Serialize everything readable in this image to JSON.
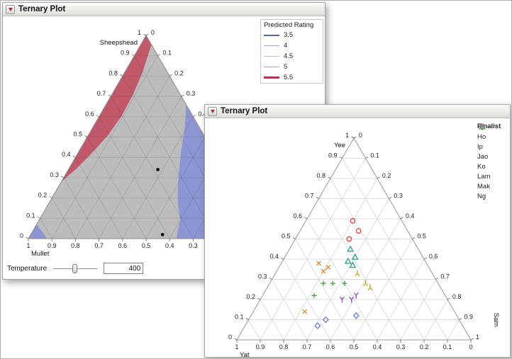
{
  "windows": {
    "left": {
      "title": "Ternary Plot"
    },
    "right": {
      "title": "Ternary Plot"
    }
  },
  "chart_data": [
    {
      "type": "ternary-contour",
      "window": "left",
      "axes": {
        "top": "Sheepshead",
        "bottom_left": "Mullet",
        "tick_step": 0.1,
        "range": [
          0,
          1
        ]
      },
      "legend": {
        "title": "Predicted Rating",
        "levels": [
          {
            "label": "3.5",
            "color": "#5468b2",
            "weight": 2
          },
          {
            "label": "4",
            "color": "#9aa6d2",
            "weight": 1.5
          },
          {
            "label": "4.5",
            "color": "#bbbbbb",
            "weight": 1
          },
          {
            "label": "5",
            "color": "#d49aa7",
            "weight": 1.5
          },
          {
            "label": "5.5",
            "color": "#b43848",
            "weight": 3
          }
        ]
      },
      "fill": {
        "base": "#bcbcbc",
        "high": "#c2596b",
        "low": "#8d96d2"
      },
      "high_band": {
        "edge": "left",
        "f0": 0.28,
        "widths": [
          [
            0.28,
            0
          ],
          [
            0.36,
            9
          ],
          [
            0.45,
            17
          ],
          [
            0.55,
            24
          ],
          [
            0.65,
            27
          ],
          [
            0.75,
            26
          ],
          [
            0.85,
            22
          ],
          [
            0.95,
            15
          ],
          [
            1,
            12
          ]
        ]
      },
      "low_polygons": [
        [
          [
            1,
            0,
            0
          ],
          [
            0.92,
            0,
            0.08
          ],
          [
            0.93,
            0.07,
            0
          ]
        ],
        [
          [
            0,
            0.66,
            0.34
          ],
          [
            0.06,
            0.55,
            0.39
          ],
          [
            0.13,
            0.44,
            0.43
          ],
          [
            0.19,
            0.34,
            0.47
          ],
          [
            0.24,
            0.25,
            0.51
          ],
          [
            0.28,
            0.17,
            0.55
          ],
          [
            0.31,
            0.09,
            0.6
          ],
          [
            0.345,
            0.04,
            0.615
          ],
          [
            0.37,
            0,
            0.63
          ],
          [
            0,
            0,
            1
          ]
        ]
      ],
      "design_points": [
        [
          0.28,
          0.34,
          0.38
        ],
        [
          0.42,
          0.02,
          0.56
        ]
      ],
      "control": {
        "label": "Temperature",
        "value": "400"
      }
    },
    {
      "type": "ternary-scatter",
      "window": "right",
      "axes": {
        "top": "Yee",
        "bottom_left": "Yat",
        "right": "Sam",
        "tick_step": 0.1,
        "range": [
          0,
          1
        ]
      },
      "legend_title": "Finalist",
      "series": [
        {
          "name": "Ho",
          "marker": "circle",
          "color": "#e0473c",
          "points": [
            [
              0.21,
              0.59,
              0.2
            ],
            [
              0.21,
              0.54,
              0.25
            ],
            [
              0.27,
              0.5,
              0.23
            ]
          ]
        },
        {
          "name": "Ip",
          "marker": "plus",
          "color": "#3fa33f",
          "points": [
            [
              0.49,
              0.28,
              0.23
            ],
            [
              0.45,
              0.28,
              0.27
            ],
            [
              0.4,
              0.28,
              0.32
            ],
            [
              0.56,
              0.22,
              0.22
            ]
          ]
        },
        {
          "name": "Jao",
          "marker": "diamond",
          "color": "#5f82d8",
          "points": [
            [
              0.62,
              0.07,
              0.31
            ],
            [
              0.57,
              0.1,
              0.33
            ],
            [
              0.43,
              0.12,
              0.45
            ]
          ]
        },
        {
          "name": "Ko",
          "marker": "x",
          "color": "#e8832e",
          "points": [
            [
              0.46,
              0.38,
              0.16
            ],
            [
              0.46,
              0.34,
              0.2
            ],
            [
              0.43,
              0.36,
              0.21
            ],
            [
              0.64,
              0.14,
              0.22
            ]
          ]
        },
        {
          "name": "Lam",
          "marker": "triangle",
          "color": "#2ba089",
          "points": [
            [
              0.29,
              0.45,
              0.26
            ],
            [
              0.29,
              0.41,
              0.3
            ],
            [
              0.33,
              0.39,
              0.28
            ],
            [
              0.32,
              0.37,
              0.31
            ]
          ]
        },
        {
          "name": "Mak",
          "marker": "y",
          "color": "#8d4fc4",
          "points": [
            [
              0.45,
              0.2,
              0.35
            ],
            [
              0.41,
              0.2,
              0.39
            ],
            [
              0.38,
              0.22,
              0.4
            ]
          ]
        },
        {
          "name": "Ng",
          "marker": "y-down",
          "color": "#b5ab26",
          "points": [
            [
              0.32,
              0.33,
              0.35
            ],
            [
              0.31,
              0.28,
              0.41
            ],
            [
              0.3,
              0.26,
              0.44
            ]
          ]
        }
      ]
    }
  ]
}
